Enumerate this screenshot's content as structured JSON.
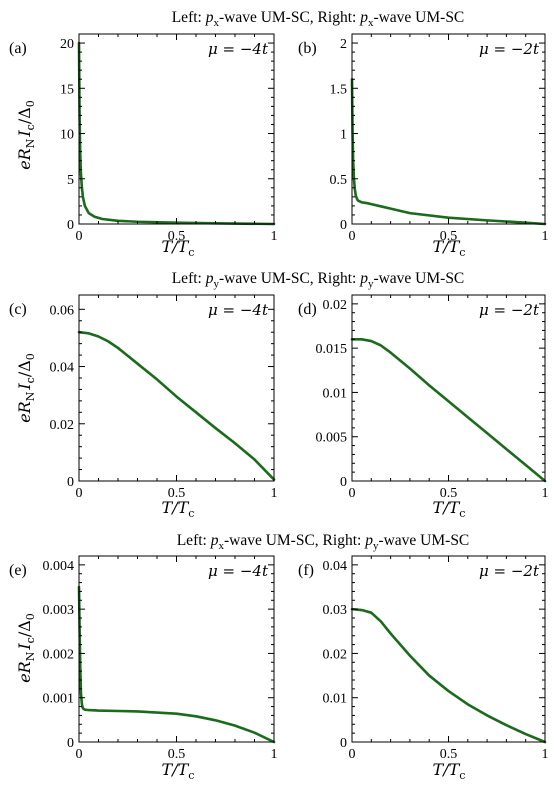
{
  "rows": [
    {
      "title_left": "Left: ",
      "title_left_sym": "p",
      "title_left_sub": "x",
      "title_mid": "-wave UM-SC, Right: ",
      "title_right_sym": "p",
      "title_right_sub": "x",
      "title_end": "-wave UM-SC"
    },
    {
      "title_left": "Left: ",
      "title_left_sym": "p",
      "title_left_sub": "y",
      "title_mid": "-wave UM-SC, Right: ",
      "title_right_sym": "p",
      "title_right_sub": "y",
      "title_end": "-wave UM-SC"
    },
    {
      "title_left": "Left: ",
      "title_left_sym": "p",
      "title_left_sub": "x",
      "title_mid": "-wave UM-SC, Right: ",
      "title_right_sym": "p",
      "title_right_sub": "y",
      "title_end": "-wave UM-SC"
    }
  ],
  "axis_text": {
    "ylabel_main": "eR",
    "ylabel_sub1": "N",
    "ylabel_mid": "I",
    "ylabel_sub2": "c",
    "ylabel_end": "/Δ",
    "ylabel_sub3": "0",
    "xlabel_main": "T/T",
    "xlabel_sub": "c"
  },
  "chart_data": [
    {
      "type": "line",
      "panel": "(a)",
      "annotation": "μ = −4t",
      "xlim": [
        0,
        1
      ],
      "ylim": [
        0,
        21
      ],
      "xticks": [
        0,
        0.5,
        1
      ],
      "xtick_labels": [
        "0",
        "0.5",
        "1"
      ],
      "yticks": [
        0,
        5,
        10,
        15,
        20
      ],
      "ytick_labels": [
        "0",
        "5",
        "10",
        "15",
        "20"
      ],
      "x": [
        0,
        0.003,
        0.006,
        0.01,
        0.015,
        0.02,
        0.03,
        0.05,
        0.08,
        0.12,
        0.2,
        0.3,
        0.5,
        0.7,
        1.0
      ],
      "y": [
        20,
        12,
        8,
        5.5,
        4,
        3,
        2,
        1.2,
        0.8,
        0.55,
        0.35,
        0.25,
        0.15,
        0.08,
        0.0
      ]
    },
    {
      "type": "line",
      "panel": "(b)",
      "annotation": "μ = −2t",
      "xlim": [
        0,
        1
      ],
      "ylim": [
        0,
        2.1
      ],
      "xticks": [
        0,
        0.5,
        1
      ],
      "xtick_labels": [
        "0",
        "0.5",
        "1"
      ],
      "yticks": [
        0,
        0.5,
        1,
        1.5,
        2
      ],
      "ytick_labels": [
        "0",
        "0.5",
        "1",
        "1.5",
        "2"
      ],
      "x": [
        0,
        0.003,
        0.006,
        0.01,
        0.015,
        0.02,
        0.03,
        0.05,
        0.08,
        0.1,
        0.2,
        0.3,
        0.5,
        0.7,
        0.9,
        1.0
      ],
      "y": [
        1.6,
        1.0,
        0.7,
        0.5,
        0.38,
        0.31,
        0.26,
        0.24,
        0.23,
        0.22,
        0.17,
        0.12,
        0.07,
        0.04,
        0.015,
        0.0
      ]
    },
    {
      "type": "line",
      "panel": "(c)",
      "annotation": "μ = −4t",
      "xlim": [
        0,
        1
      ],
      "ylim": [
        0,
        0.065
      ],
      "xticks": [
        0,
        0.5,
        1
      ],
      "xtick_labels": [
        "0",
        "0.5",
        "1"
      ],
      "yticks": [
        0,
        0.02,
        0.04,
        0.06
      ],
      "ytick_labels": [
        "0",
        "0.02",
        "0.04",
        "0.06"
      ],
      "x": [
        0,
        0.05,
        0.1,
        0.15,
        0.2,
        0.3,
        0.4,
        0.5,
        0.6,
        0.7,
        0.8,
        0.9,
        1.0
      ],
      "y": [
        0.052,
        0.0516,
        0.0505,
        0.0488,
        0.0465,
        0.041,
        0.0355,
        0.0295,
        0.024,
        0.0185,
        0.0132,
        0.0075,
        0.0005
      ]
    },
    {
      "type": "line",
      "panel": "(d)",
      "annotation": "μ = −2t",
      "xlim": [
        0,
        1
      ],
      "ylim": [
        0,
        0.021
      ],
      "xticks": [
        0,
        0.5,
        1
      ],
      "xtick_labels": [
        "0",
        "0.5",
        "1"
      ],
      "yticks": [
        0,
        0.005,
        0.01,
        0.015,
        0.02
      ],
      "ytick_labels": [
        "0",
        "0.005",
        "0.01",
        "0.015",
        "0.02"
      ],
      "x": [
        0,
        0.05,
        0.1,
        0.15,
        0.2,
        0.3,
        0.4,
        0.5,
        0.6,
        0.7,
        0.8,
        0.9,
        1.0
      ],
      "y": [
        0.016,
        0.016,
        0.0158,
        0.0153,
        0.0145,
        0.0127,
        0.0108,
        0.009,
        0.0072,
        0.0054,
        0.0036,
        0.0018,
        0.0
      ]
    },
    {
      "type": "line",
      "panel": "(e)",
      "annotation": "μ = −4t",
      "xlim": [
        0,
        1
      ],
      "ylim": [
        0,
        0.0042
      ],
      "xticks": [
        0,
        0.5,
        1
      ],
      "xtick_labels": [
        "0",
        "0.5",
        "1"
      ],
      "yticks": [
        0,
        0.001,
        0.002,
        0.003,
        0.004
      ],
      "ytick_labels": [
        "0",
        "0.001",
        "0.002",
        "0.003",
        "0.004"
      ],
      "x": [
        0,
        0.003,
        0.006,
        0.01,
        0.015,
        0.02,
        0.03,
        0.05,
        0.1,
        0.2,
        0.3,
        0.5,
        0.6,
        0.7,
        0.8,
        0.9,
        1.0
      ],
      "y": [
        0.0035,
        0.0026,
        0.0018,
        0.0011,
        0.00085,
        0.00076,
        0.00073,
        0.00072,
        0.00071,
        0.0007,
        0.00069,
        0.00064,
        0.00058,
        0.00049,
        0.00037,
        0.00021,
        0.0
      ]
    },
    {
      "type": "line",
      "panel": "(f)",
      "annotation": "μ = −2t",
      "xlim": [
        0,
        1
      ],
      "ylim": [
        0,
        0.042
      ],
      "xticks": [
        0,
        0.5,
        1
      ],
      "xtick_labels": [
        "0",
        "0.5",
        "1"
      ],
      "yticks": [
        0,
        0.01,
        0.02,
        0.03,
        0.04
      ],
      "ytick_labels": [
        "0",
        "0.01",
        "0.02",
        "0.03",
        "0.04"
      ],
      "x": [
        0,
        0.05,
        0.1,
        0.15,
        0.2,
        0.3,
        0.4,
        0.5,
        0.6,
        0.7,
        0.8,
        0.9,
        1.0
      ],
      "y": [
        0.03,
        0.0298,
        0.0292,
        0.0272,
        0.0245,
        0.0195,
        0.015,
        0.0115,
        0.0085,
        0.006,
        0.0038,
        0.0018,
        0.0
      ]
    }
  ]
}
